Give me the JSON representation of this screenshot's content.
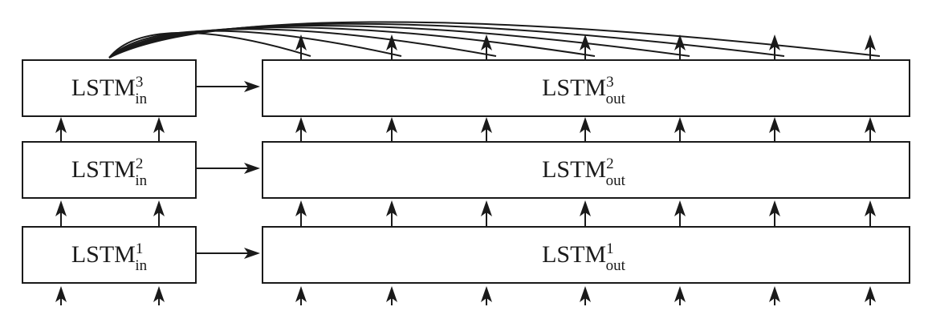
{
  "diagram": {
    "input_layers": [
      {
        "base": "LSTM",
        "sup": "1",
        "sub": "in"
      },
      {
        "base": "LSTM",
        "sup": "2",
        "sub": "in"
      },
      {
        "base": "LSTM",
        "sup": "3",
        "sub": "in"
      }
    ],
    "output_layers": [
      {
        "base": "LSTM",
        "sup": "1",
        "sub": "out"
      },
      {
        "base": "LSTM",
        "sup": "2",
        "sub": "out"
      },
      {
        "base": "LSTM",
        "sup": "3",
        "sub": "out"
      }
    ],
    "input_timesteps": 2,
    "output_timesteps": 7,
    "attention_links": 7,
    "colors": {
      "stroke": "#1a1a1a",
      "fill": "#ffffff"
    }
  }
}
